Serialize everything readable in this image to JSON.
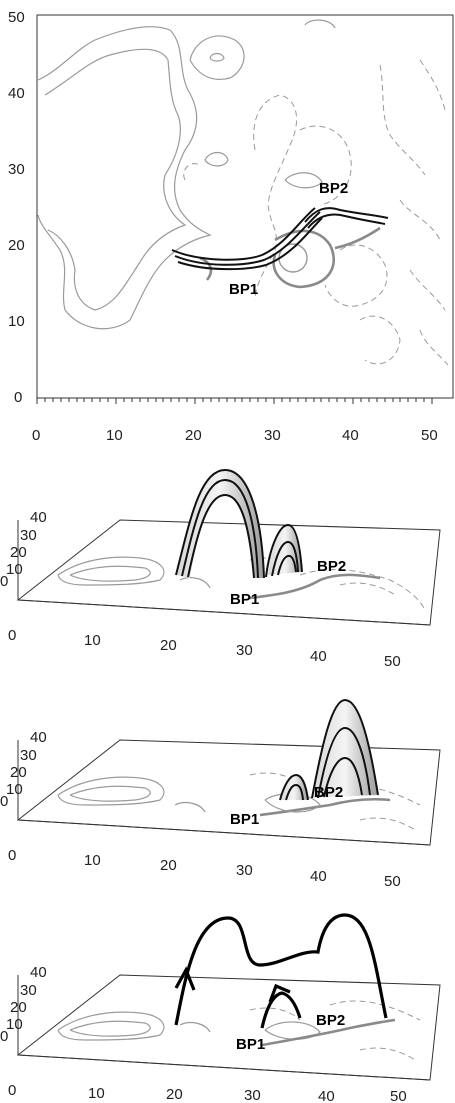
{
  "panel1": {
    "y_ticks": [
      "50",
      "40",
      "30",
      "20",
      "10",
      "0"
    ],
    "x_ticks": [
      "0",
      "10",
      "20",
      "30",
      "40",
      "50"
    ],
    "labels": {
      "bp1": "BP1",
      "bp2": "BP2"
    }
  },
  "panel2": {
    "z_ticks": [
      "40",
      "30",
      "20",
      "10",
      "0"
    ],
    "x_ticks": [
      "0",
      "10",
      "20",
      "30",
      "40",
      "50"
    ],
    "labels": {
      "bp1": "BP1",
      "bp2": "BP2"
    }
  },
  "panel3": {
    "z_ticks": [
      "40",
      "30",
      "20",
      "10",
      "0"
    ],
    "x_ticks": [
      "0",
      "10",
      "20",
      "30",
      "40",
      "50"
    ],
    "labels": {
      "bp1": "BP1",
      "bp2": "BP2"
    }
  },
  "panel4": {
    "z_ticks": [
      "40",
      "30",
      "20",
      "10",
      "0"
    ],
    "x_ticks": [
      "0",
      "10",
      "20",
      "30",
      "40",
      "50"
    ],
    "labels": {
      "bp1": "BP1",
      "bp2": "BP2"
    }
  }
}
